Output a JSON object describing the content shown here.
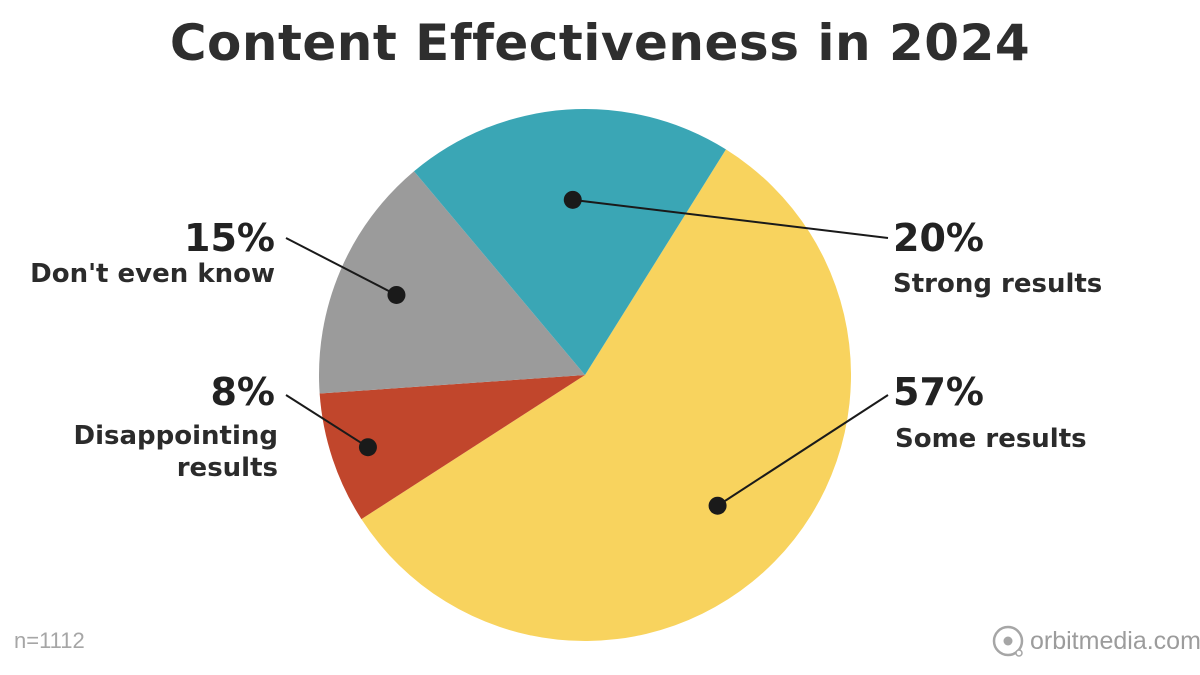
{
  "chart_data": {
    "type": "pie",
    "title": "Content Effectiveness in 2024",
    "slices": [
      {
        "label": "Some results",
        "value": 57,
        "value_label": "57%",
        "color": "#f8d35e"
      },
      {
        "label": "Disappointing results",
        "label_lines": [
          "Disappointing",
          "results"
        ],
        "value": 8,
        "value_label": "8%",
        "color": "#c1462c"
      },
      {
        "label": "Don't even know",
        "value": 15,
        "value_label": "15%",
        "color": "#9b9b9b"
      },
      {
        "label": "Strong results",
        "value": 20,
        "value_label": "20%",
        "color": "#3aa6b5"
      }
    ],
    "legend": "none",
    "labels_position": "outside with leader lines"
  },
  "footnote": "n=1112",
  "brand": {
    "name": "orbitmedia.com",
    "icon": "orbit-logo-icon"
  }
}
